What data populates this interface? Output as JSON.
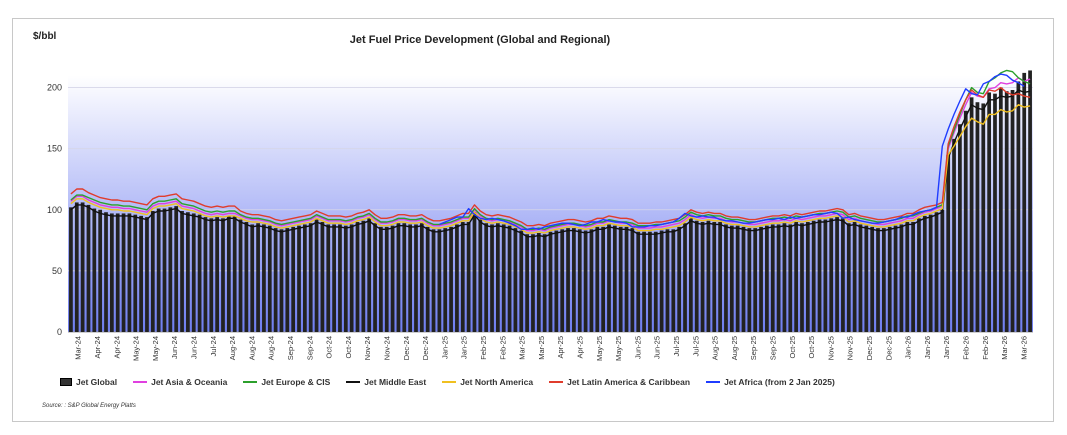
{
  "chart_data": {
    "type": "bar+line",
    "title": "Jet Fuel Price Development (Global and Regional)",
    "ylabel": "$/bbl",
    "xlabel": "",
    "ylim": [
      0,
      225
    ],
    "yticks": [
      0,
      50,
      100,
      150,
      200
    ],
    "gridlines": true,
    "legend_position": "bottom",
    "source": "Source: : S&P Global Energy Platts",
    "categories": [
      "Mar-24",
      "Apr-24",
      "Apr-24",
      "May-24",
      "May-24",
      "Jun-24",
      "Jun-24",
      "Jul-24",
      "Aug-24",
      "Aug-24",
      "Aug-24",
      "Sep-24",
      "Sep-24",
      "Oct-24",
      "Oct-24",
      "Nov-24",
      "Nov-24",
      "Dec-24",
      "Dec-24",
      "Jan-25",
      "Jan-25",
      "Feb-25",
      "Feb-25",
      "Mar-25",
      "Mar-25",
      "Apr-25",
      "Apr-25",
      "May-25",
      "May-25",
      "Jun-25",
      "Jun-25",
      "Jul-25",
      "Jul-25",
      "Aug-25",
      "Aug-25",
      "Sep-25",
      "Sep-25",
      "Oct-25",
      "Oct-25",
      "Nov-25",
      "Nov-25",
      "Dec-25",
      "Dec-25",
      "Jan-26",
      "Jan-26",
      "Jan-26",
      "Feb-26",
      "Feb-26",
      "Mar-26",
      "Mar-26"
    ],
    "bar_series": {
      "name": "Jet Global",
      "color": "#222222",
      "values": [
        102,
        106,
        106,
        104,
        101,
        100,
        98,
        97,
        97,
        97,
        97,
        96,
        95,
        94,
        99,
        101,
        101,
        102,
        103,
        99,
        98,
        97,
        96,
        94,
        93,
        94,
        93,
        95,
        95,
        92,
        90,
        88,
        89,
        88,
        87,
        85,
        84,
        85,
        86,
        87,
        88,
        89,
        92,
        90,
        88,
        88,
        88,
        87,
        88,
        90,
        91,
        93,
        89,
        86,
        86,
        87,
        89,
        89,
        88,
        88,
        89,
        86,
        84,
        84,
        85,
        86,
        88,
        90,
        90,
        98,
        92,
        89,
        88,
        89,
        88,
        87,
        85,
        83,
        80,
        80,
        81,
        80,
        82,
        83,
        84,
        85,
        85,
        84,
        83,
        84,
        86,
        86,
        88,
        87,
        86,
        86,
        85,
        82,
        82,
        82,
        82,
        83,
        84,
        84,
        86,
        89,
        93,
        91,
        90,
        91,
        90,
        90,
        88,
        87,
        87,
        86,
        85,
        85,
        86,
        87,
        88,
        88,
        89,
        88,
        90,
        89,
        90,
        91,
        92,
        92,
        93,
        94,
        93,
        89,
        90,
        88,
        87,
        86,
        85,
        85,
        86,
        87,
        88,
        90,
        90,
        93,
        95,
        96,
        98,
        100,
        145,
        158,
        170,
        181,
        192,
        188,
        187,
        196,
        195,
        200,
        197,
        198,
        205,
        212,
        214
      ]
    },
    "line_series": [
      {
        "name": "Jet Asia & Oceania",
        "color": "#e040e0",
        "values": [
          107,
          111,
          111,
          108,
          106,
          104,
          103,
          102,
          102,
          101,
          101,
          100,
          99,
          98,
          103,
          105,
          105,
          106,
          107,
          103,
          102,
          101,
          99,
          97,
          96,
          97,
          96,
          97,
          97,
          95,
          93,
          92,
          92,
          91,
          90,
          88,
          87,
          88,
          89,
          90,
          91,
          92,
          95,
          93,
          91,
          91,
          91,
          90,
          91,
          93,
          94,
          96,
          92,
          89,
          89,
          90,
          92,
          92,
          91,
          91,
          92,
          89,
          87,
          87,
          88,
          89,
          91,
          93,
          93,
          100,
          95,
          92,
          91,
          92,
          91,
          90,
          88,
          86,
          83,
          83,
          84,
          83,
          85,
          86,
          87,
          88,
          88,
          87,
          86,
          87,
          89,
          89,
          91,
          90,
          89,
          89,
          88,
          85,
          85,
          85,
          86,
          86,
          87,
          88,
          89,
          92,
          96,
          94,
          93,
          94,
          93,
          93,
          91,
          90,
          90,
          89,
          88,
          88,
          89,
          90,
          91,
          91,
          92,
          91,
          93,
          92,
          93,
          94,
          95,
          95,
          96,
          97,
          96,
          92,
          93,
          91,
          90,
          89,
          88,
          88,
          89,
          90,
          91,
          93,
          93,
          96,
          98,
          99,
          101,
          103,
          150,
          163,
          175,
          186,
          196,
          193,
          192,
          199,
          200,
          204,
          203,
          204,
          208,
          205,
          207
        ]
      },
      {
        "name": "Jet Europe & CIS",
        "color": "#2ca02c",
        "values": [
          108,
          112,
          112,
          110,
          108,
          106,
          105,
          104,
          104,
          103,
          103,
          102,
          101,
          100,
          105,
          107,
          107,
          108,
          109,
          105,
          104,
          103,
          101,
          99,
          98,
          99,
          98,
          99,
          99,
          96,
          94,
          93,
          93,
          92,
          91,
          89,
          88,
          89,
          90,
          91,
          92,
          93,
          96,
          94,
          92,
          92,
          92,
          91,
          92,
          94,
          95,
          97,
          93,
          90,
          90,
          91,
          93,
          93,
          92,
          92,
          93,
          90,
          88,
          88,
          89,
          90,
          92,
          94,
          94,
          101,
          96,
          93,
          92,
          93,
          92,
          91,
          89,
          87,
          84,
          84,
          85,
          84,
          86,
          87,
          88,
          89,
          89,
          88,
          87,
          88,
          90,
          90,
          92,
          91,
          90,
          90,
          89,
          87,
          87,
          87,
          88,
          88,
          89,
          90,
          91,
          94,
          98,
          96,
          95,
          96,
          95,
          95,
          93,
          92,
          92,
          91,
          90,
          90,
          91,
          92,
          93,
          93,
          94,
          93,
          95,
          94,
          95,
          96,
          97,
          97,
          98,
          99,
          98,
          94,
          95,
          93,
          92,
          91,
          90,
          90,
          91,
          92,
          93,
          95,
          95,
          97,
          99,
          100,
          102,
          104,
          152,
          165,
          178,
          190,
          200,
          196,
          195,
          205,
          208,
          212,
          214,
          213,
          208,
          205,
          203
        ]
      },
      {
        "name": "Jet Middle East",
        "color": "#111111",
        "values": [
          100,
          104,
          104,
          102,
          99,
          97,
          96,
          95,
          95,
          95,
          95,
          94,
          93,
          92,
          97,
          99,
          99,
          100,
          101,
          97,
          96,
          95,
          94,
          92,
          91,
          92,
          91,
          93,
          93,
          90,
          88,
          86,
          87,
          86,
          85,
          83,
          82,
          83,
          84,
          85,
          86,
          87,
          90,
          88,
          86,
          86,
          86,
          85,
          86,
          88,
          89,
          91,
          87,
          84,
          84,
          85,
          87,
          87,
          86,
          86,
          87,
          84,
          82,
          82,
          83,
          84,
          86,
          88,
          88,
          96,
          90,
          87,
          86,
          87,
          86,
          85,
          83,
          81,
          78,
          78,
          79,
          78,
          80,
          81,
          82,
          83,
          83,
          82,
          81,
          82,
          84,
          84,
          86,
          85,
          84,
          84,
          83,
          80,
          80,
          80,
          80,
          81,
          82,
          82,
          84,
          87,
          91,
          89,
          88,
          89,
          88,
          88,
          86,
          85,
          85,
          84,
          83,
          83,
          84,
          85,
          86,
          86,
          87,
          86,
          88,
          87,
          88,
          89,
          90,
          90,
          91,
          92,
          91,
          87,
          88,
          86,
          85,
          84,
          83,
          83,
          84,
          85,
          86,
          88,
          88,
          91,
          93,
          94,
          96,
          98,
          142,
          155,
          166,
          176,
          186,
          183,
          182,
          190,
          190,
          193,
          192,
          193,
          198,
          196,
          197
        ]
      },
      {
        "name": "Jet North America",
        "color": "#f0c020",
        "values": [
          105,
          109,
          109,
          106,
          104,
          102,
          101,
          100,
          100,
          99,
          99,
          98,
          97,
          96,
          101,
          103,
          103,
          104,
          105,
          101,
          100,
          99,
          97,
          95,
          94,
          95,
          94,
          95,
          95,
          93,
          91,
          90,
          90,
          89,
          88,
          86,
          85,
          86,
          87,
          88,
          89,
          90,
          93,
          91,
          89,
          89,
          89,
          88,
          89,
          91,
          92,
          94,
          90,
          87,
          87,
          88,
          90,
          90,
          89,
          89,
          90,
          87,
          85,
          85,
          86,
          87,
          89,
          91,
          91,
          98,
          93,
          90,
          89,
          90,
          89,
          88,
          86,
          84,
          81,
          81,
          82,
          81,
          83,
          84,
          85,
          86,
          86,
          85,
          84,
          85,
          87,
          87,
          89,
          88,
          87,
          87,
          86,
          83,
          83,
          83,
          84,
          84,
          85,
          86,
          87,
          90,
          94,
          92,
          91,
          92,
          91,
          91,
          89,
          88,
          88,
          87,
          86,
          86,
          87,
          88,
          89,
          89,
          90,
          89,
          91,
          90,
          91,
          92,
          93,
          93,
          94,
          95,
          94,
          90,
          91,
          89,
          88,
          87,
          86,
          86,
          87,
          88,
          89,
          91,
          91,
          94,
          96,
          97,
          99,
          101,
          145,
          152,
          160,
          168,
          175,
          172,
          170,
          178,
          178,
          182,
          180,
          181,
          186,
          184,
          185
        ]
      },
      {
        "name": "Jet Latin America & Caribbean",
        "color": "#e03c2c",
        "values": [
          113,
          117,
          117,
          114,
          112,
          110,
          109,
          108,
          108,
          107,
          107,
          106,
          105,
          104,
          109,
          111,
          111,
          112,
          113,
          109,
          108,
          107,
          105,
          103,
          102,
          103,
          102,
          103,
          103,
          99,
          97,
          96,
          96,
          95,
          94,
          92,
          91,
          92,
          93,
          94,
          95,
          96,
          99,
          97,
          95,
          95,
          95,
          94,
          95,
          97,
          98,
          100,
          96,
          93,
          93,
          94,
          96,
          96,
          95,
          95,
          96,
          93,
          91,
          91,
          92,
          93,
          95,
          97,
          97,
          104,
          99,
          96,
          95,
          96,
          95,
          94,
          92,
          90,
          87,
          87,
          88,
          87,
          89,
          90,
          91,
          92,
          92,
          91,
          90,
          91,
          93,
          93,
          95,
          94,
          93,
          93,
          92,
          89,
          89,
          89,
          90,
          90,
          91,
          92,
          93,
          96,
          100,
          98,
          97,
          98,
          97,
          97,
          95,
          94,
          94,
          93,
          92,
          92,
          93,
          94,
          95,
          95,
          96,
          95,
          97,
          96,
          97,
          98,
          99,
          99,
          100,
          101,
          100,
          96,
          97,
          95,
          94,
          93,
          92,
          92,
          93,
          94,
          95,
          97,
          97,
          100,
          102,
          103,
          104,
          106,
          154,
          168,
          180,
          190,
          198,
          194,
          192,
          198,
          197,
          200,
          196,
          194,
          195,
          193,
          192
        ]
      },
      {
        "name": "Jet Africa (from 2 Jan 2025)",
        "color": "#1f3cff",
        "start_index": 63,
        "values": [
          88,
          90,
          92,
          94,
          94,
          101,
          96,
          93,
          92,
          93,
          92,
          91,
          89,
          87,
          84,
          84,
          85,
          84,
          86,
          87,
          88,
          89,
          89,
          88,
          87,
          88,
          90,
          90,
          92,
          91,
          90,
          90,
          89,
          86,
          86,
          86,
          87,
          87,
          88,
          89,
          90,
          93,
          97,
          95,
          94,
          95,
          94,
          94,
          92,
          91,
          91,
          90,
          89,
          89,
          90,
          91,
          92,
          92,
          93,
          92,
          94,
          93,
          94,
          95,
          96,
          96,
          97,
          98,
          97,
          93,
          94,
          92,
          91,
          90,
          89,
          89,
          90,
          91,
          92,
          94,
          94,
          96,
          98,
          99,
          100,
          102,
          152,
          166,
          178,
          189,
          199,
          195,
          194,
          203,
          205,
          209,
          211,
          210,
          206,
          204,
          201
        ]
      }
    ]
  },
  "legend": {
    "jet_global": "Jet Global",
    "asia": "Jet Asia & Oceania",
    "europe": "Jet Europe & CIS",
    "middle_east": "Jet Middle East",
    "north_america": "Jet North America",
    "latam": "Jet Latin America & Caribbean",
    "africa": "Jet Africa (from 2 Jan 2025)"
  },
  "colors": {
    "gradient_top": "#ffffff",
    "gradient_bottom": "#6f7ef0"
  }
}
